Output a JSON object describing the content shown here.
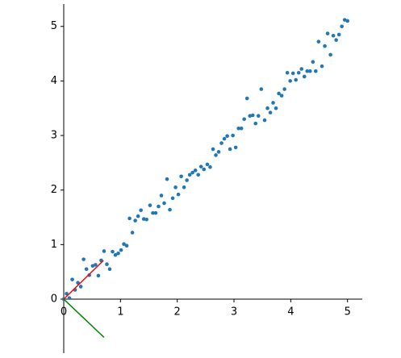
{
  "chart_data": {
    "type": "scatter",
    "xlim": [
      0,
      5.26
    ],
    "ylim": [
      -0.99,
      5.41
    ],
    "xticks": [
      0,
      1,
      2,
      3,
      4,
      5
    ],
    "yticks": [
      0,
      1,
      2,
      3,
      4,
      5
    ],
    "series": [
      {
        "color": "#1f77b4",
        "x": [
          0.0,
          0.05,
          0.1,
          0.15,
          0.2,
          0.25,
          0.3,
          0.35,
          0.4,
          0.45,
          0.51,
          0.56,
          0.61,
          0.66,
          0.71,
          0.76,
          0.81,
          0.86,
          0.91,
          0.96,
          1.01,
          1.06,
          1.11,
          1.16,
          1.21,
          1.26,
          1.31,
          1.36,
          1.41,
          1.46,
          1.52,
          1.57,
          1.62,
          1.67,
          1.72,
          1.77,
          1.82,
          1.87,
          1.92,
          1.97,
          2.02,
          2.07,
          2.12,
          2.17,
          2.22,
          2.27,
          2.32,
          2.37,
          2.42,
          2.47,
          2.53,
          2.58,
          2.63,
          2.68,
          2.73,
          2.78,
          2.83,
          2.88,
          2.93,
          2.98,
          3.03,
          3.08,
          3.13,
          3.18,
          3.23,
          3.28,
          3.33,
          3.38,
          3.43,
          3.48,
          3.54,
          3.59,
          3.64,
          3.69,
          3.74,
          3.79,
          3.84,
          3.89,
          3.94,
          3.99,
          4.04,
          4.09,
          4.14,
          4.19,
          4.24,
          4.29,
          4.34,
          4.39,
          4.44,
          4.49,
          4.55,
          4.6,
          4.65,
          4.7,
          4.75,
          4.8,
          4.85,
          4.9,
          4.95,
          5.0
        ],
        "values": [
          0.0,
          0.1,
          0.02,
          0.36,
          0.17,
          0.3,
          0.23,
          0.73,
          0.55,
          0.44,
          0.61,
          0.63,
          0.43,
          0.71,
          0.88,
          0.64,
          0.55,
          0.87,
          0.81,
          0.84,
          0.9,
          1.01,
          0.98,
          1.48,
          1.22,
          1.44,
          1.52,
          1.63,
          1.47,
          1.46,
          1.72,
          1.58,
          1.58,
          1.7,
          1.9,
          1.76,
          2.2,
          1.64,
          1.85,
          2.05,
          1.92,
          2.25,
          2.05,
          2.18,
          2.28,
          2.32,
          2.36,
          2.28,
          2.43,
          2.38,
          2.47,
          2.42,
          2.75,
          2.64,
          2.7,
          2.86,
          2.94,
          2.99,
          2.75,
          3.0,
          2.78,
          3.13,
          3.13,
          3.3,
          3.68,
          3.36,
          3.37,
          3.22,
          3.36,
          3.85,
          3.28,
          3.5,
          3.42,
          3.6,
          3.5,
          3.77,
          3.73,
          3.85,
          4.15,
          4.0,
          4.14,
          4.02,
          4.15,
          4.22,
          4.08,
          4.18,
          4.18,
          4.35,
          4.18,
          4.72,
          4.27,
          4.64,
          4.87,
          4.48,
          4.83,
          4.75,
          4.85,
          5.0,
          5.12,
          5.1
        ]
      }
    ],
    "lines": [
      {
        "color": "#ff0000",
        "x": [
          0,
          0.7
        ],
        "values": [
          0,
          0.71
        ]
      },
      {
        "color": "#008000",
        "x": [
          0,
          0.71
        ],
        "values": [
          0,
          -0.7
        ]
      }
    ]
  }
}
